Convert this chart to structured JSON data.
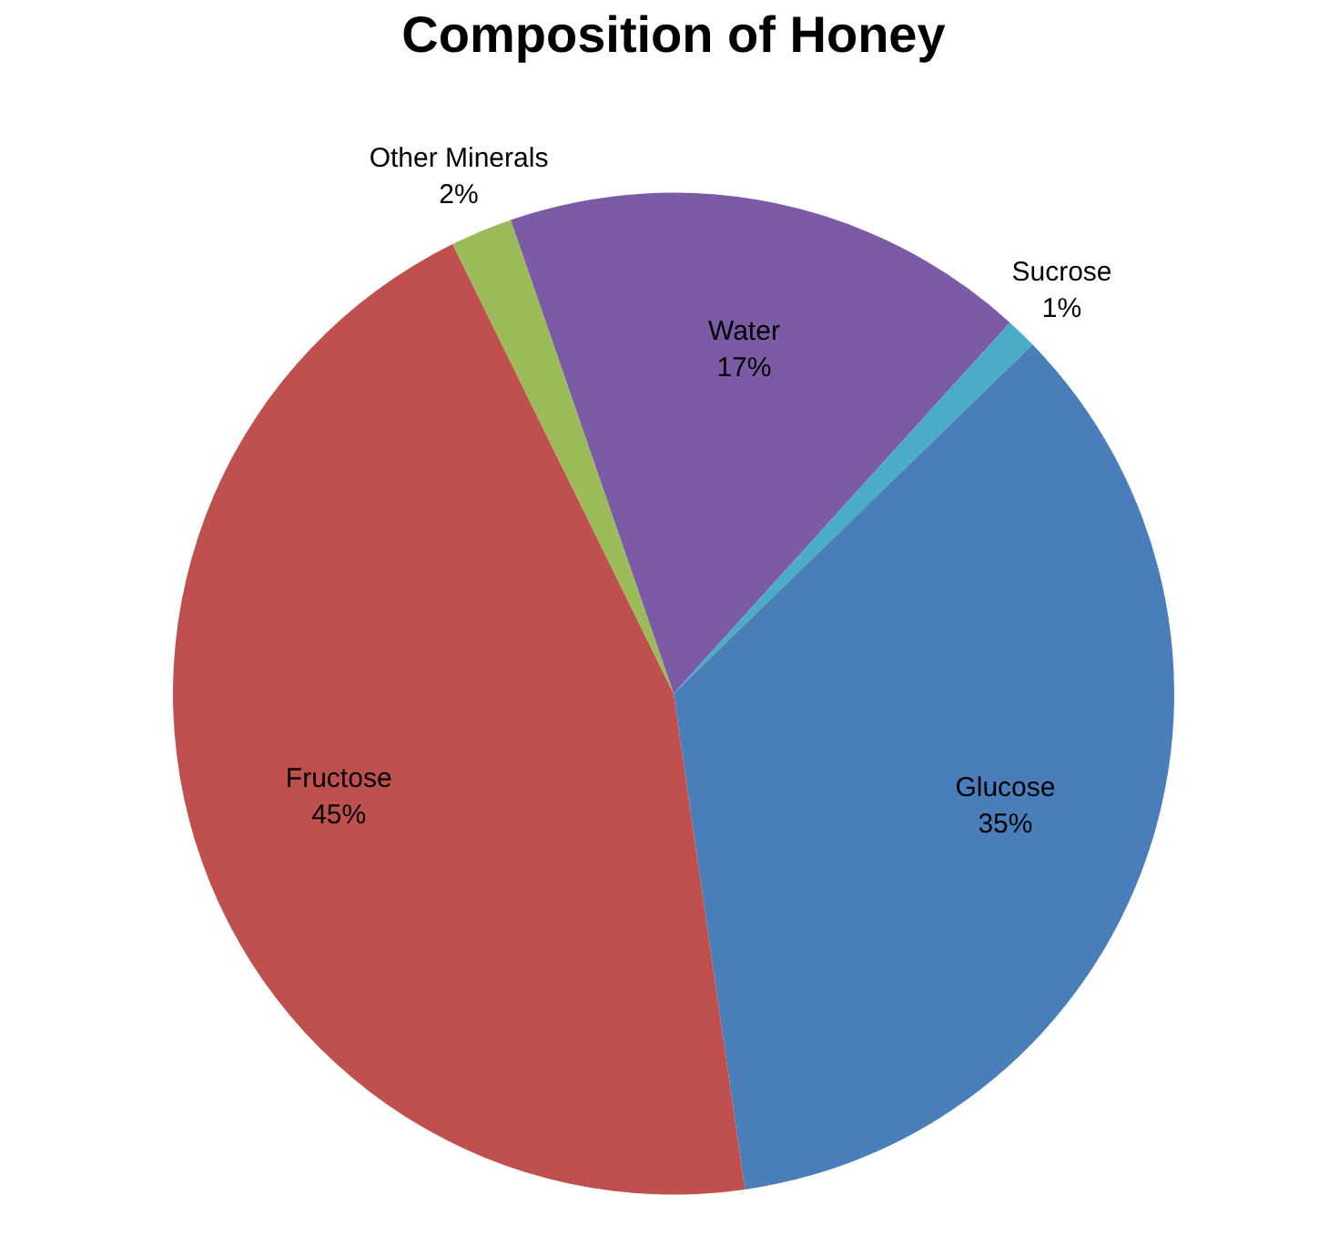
{
  "chart_data": {
    "type": "pie",
    "title": "Composition of Honey",
    "categories": [
      "Water",
      "Sucrose",
      "Glucose",
      "Fructose",
      "Other Minerals"
    ],
    "values": [
      17,
      1,
      35,
      45,
      2
    ],
    "value_labels": [
      "17%",
      "1%",
      "35%",
      "45%",
      "2%"
    ],
    "colors": [
      "#7b5aa6",
      "#4bacc6",
      "#4a7ebb",
      "#c0504d",
      "#9bbb59"
    ],
    "legend": false
  }
}
